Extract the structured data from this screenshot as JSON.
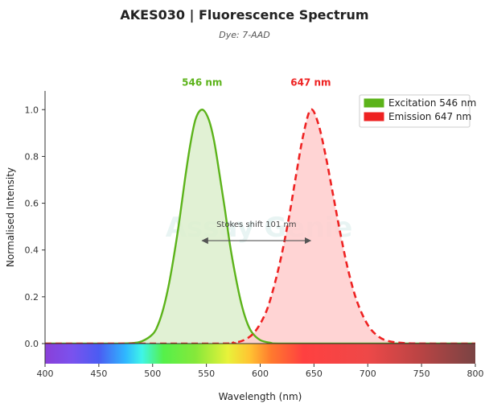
{
  "title": "AKES030  |  Fluorescence Spectrum",
  "subtitle": "Dye: 7-AAD",
  "watermark": "Assay Genie",
  "chart_data": {
    "type": "area",
    "xlabel": "Wavelength (nm)",
    "ylabel": "Normalised Intensity",
    "xlim": [
      400,
      800
    ],
    "ylim": [
      0,
      1.08
    ],
    "x_ticks": [
      400,
      450,
      500,
      550,
      600,
      650,
      700,
      750,
      800
    ],
    "y_ticks": [
      0.0,
      0.2,
      0.4,
      0.6,
      0.8,
      1.0
    ],
    "x_tick_labels": [
      "400",
      "450",
      "500",
      "550",
      "600",
      "650",
      "700",
      "750",
      "800"
    ],
    "y_tick_labels": [
      "0.0",
      "0.2",
      "0.4",
      "0.6",
      "0.8",
      "1.0"
    ],
    "grid": false,
    "legend_position": "top-right",
    "series": [
      {
        "name": "Excitation  546 nm",
        "peak": 546,
        "peak_label": "546 nm",
        "color": "#5cb31a",
        "fill": "#dcefcd",
        "line_style": "solid",
        "x": [
          400,
          460,
          480,
          490,
          500,
          505,
          510,
          515,
          520,
          525,
          530,
          535,
          540,
          546,
          552,
          557,
          562,
          567,
          572,
          577,
          582,
          587,
          592,
          600,
          610,
          620,
          700,
          800
        ],
        "y": [
          0,
          0,
          0.002,
          0.01,
          0.04,
          0.08,
          0.15,
          0.25,
          0.38,
          0.53,
          0.7,
          0.85,
          0.96,
          1.0,
          0.96,
          0.87,
          0.73,
          0.58,
          0.42,
          0.29,
          0.18,
          0.1,
          0.05,
          0.015,
          0.003,
          0,
          0,
          0
        ]
      },
      {
        "name": "Emission  647 nm",
        "peak": 647,
        "peak_label": "647 nm",
        "color": "#ee2222",
        "fill": "#ffcccc",
        "line_style": "dashed",
        "x": [
          400,
          560,
          575,
          585,
          595,
          605,
          612,
          619,
          626,
          633,
          640,
          647,
          654,
          661,
          668,
          675,
          682,
          690,
          700,
          710,
          720,
          735,
          760,
          800
        ],
        "y": [
          0,
          0,
          0.004,
          0.015,
          0.05,
          0.13,
          0.23,
          0.36,
          0.52,
          0.71,
          0.89,
          1.0,
          0.94,
          0.8,
          0.63,
          0.46,
          0.31,
          0.18,
          0.08,
          0.03,
          0.01,
          0.002,
          0,
          0
        ]
      }
    ],
    "annotation": {
      "text": "Stokes shift  101 nm",
      "from": 546,
      "to": 647,
      "y": 0.44
    },
    "spectrum_bar": {
      "stops": [
        {
          "x": 400,
          "color": "#8a3fd8"
        },
        {
          "x": 425,
          "color": "#7a52ee"
        },
        {
          "x": 450,
          "color": "#4b5cf2"
        },
        {
          "x": 475,
          "color": "#2fb8ff"
        },
        {
          "x": 490,
          "color": "#3ff5e8"
        },
        {
          "x": 510,
          "color": "#55f04a"
        },
        {
          "x": 540,
          "color": "#86e83a"
        },
        {
          "x": 570,
          "color": "#e8f23a"
        },
        {
          "x": 590,
          "color": "#ffc432"
        },
        {
          "x": 610,
          "color": "#ff7a2e"
        },
        {
          "x": 640,
          "color": "#ff4040"
        },
        {
          "x": 700,
          "color": "#ee4848"
        },
        {
          "x": 750,
          "color": "#b84444"
        },
        {
          "x": 800,
          "color": "#7a4444"
        }
      ]
    }
  }
}
